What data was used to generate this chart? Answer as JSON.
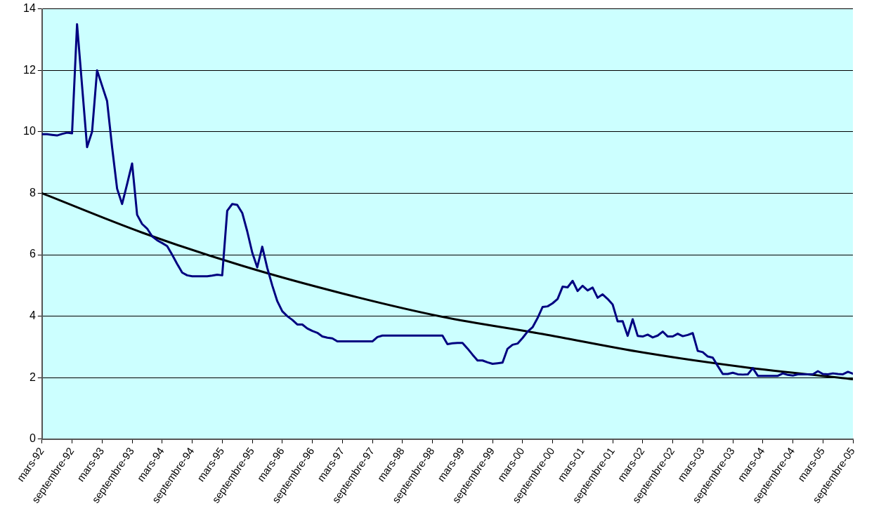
{
  "chart_data": {
    "type": "line",
    "x": [
      "1992-03",
      "1992-04",
      "1992-05",
      "1992-06",
      "1992-07",
      "1992-08",
      "1992-09",
      "1992-10",
      "1992-11",
      "1992-12",
      "1993-01",
      "1993-02",
      "1993-03",
      "1993-04",
      "1993-05",
      "1993-06",
      "1993-07",
      "1993-08",
      "1993-09",
      "1993-10",
      "1993-11",
      "1993-12",
      "1994-01",
      "1994-02",
      "1994-03",
      "1994-04",
      "1994-05",
      "1994-06",
      "1994-07",
      "1994-08",
      "1994-09",
      "1994-10",
      "1994-11",
      "1994-12",
      "1995-01",
      "1995-02",
      "1995-03",
      "1995-04",
      "1995-05",
      "1995-06",
      "1995-07",
      "1995-08",
      "1995-09",
      "1995-10",
      "1995-11",
      "1995-12",
      "1996-01",
      "1996-02",
      "1996-03",
      "1996-04",
      "1996-05",
      "1996-06",
      "1996-07",
      "1996-08",
      "1996-09",
      "1996-10",
      "1996-11",
      "1996-12",
      "1997-01",
      "1997-02",
      "1997-03",
      "1997-04",
      "1997-05",
      "1997-06",
      "1997-07",
      "1997-08",
      "1997-09",
      "1997-10",
      "1997-11",
      "1997-12",
      "1998-01",
      "1998-02",
      "1998-03",
      "1998-04",
      "1998-05",
      "1998-06",
      "1998-07",
      "1998-08",
      "1998-09",
      "1998-10",
      "1998-11",
      "1998-12",
      "1999-01",
      "1999-02",
      "1999-03",
      "1999-04",
      "1999-05",
      "1999-06",
      "1999-07",
      "1999-08",
      "1999-09",
      "1999-10",
      "1999-11",
      "1999-12",
      "2000-01",
      "2000-02",
      "2000-03",
      "2000-04",
      "2000-05",
      "2000-06",
      "2000-07",
      "2000-08",
      "2000-09",
      "2000-10",
      "2000-11",
      "2000-12",
      "2001-01",
      "2001-02",
      "2001-03",
      "2001-04",
      "2001-05",
      "2001-06",
      "2001-07",
      "2001-08",
      "2001-09",
      "2001-10",
      "2001-11",
      "2001-12",
      "2002-01",
      "2002-02",
      "2002-03",
      "2002-04",
      "2002-05",
      "2002-06",
      "2002-07",
      "2002-08",
      "2002-09",
      "2002-10",
      "2002-11",
      "2002-12",
      "2003-01",
      "2003-02",
      "2003-03",
      "2003-04",
      "2003-05",
      "2003-06",
      "2003-07",
      "2003-08",
      "2003-09",
      "2003-10",
      "2003-11",
      "2003-12",
      "2004-01",
      "2004-02",
      "2004-03",
      "2004-04",
      "2004-05",
      "2004-06",
      "2004-07",
      "2004-08",
      "2004-09",
      "2004-10",
      "2004-11",
      "2004-12",
      "2005-01",
      "2005-02",
      "2005-03",
      "2005-04",
      "2005-05",
      "2005-06",
      "2005-07",
      "2005-08",
      "2005-09"
    ],
    "series": [
      {
        "color": "#000080",
        "values": [
          9.92,
          9.92,
          9.9,
          9.88,
          9.93,
          9.97,
          9.95,
          13.5,
          11.5,
          9.5,
          10,
          12,
          11.5,
          11,
          9.5,
          8.15,
          7.65,
          8.3,
          8.97,
          7.3,
          7,
          6.85,
          6.6,
          6.47,
          6.38,
          6.28,
          6,
          5.7,
          5.42,
          5.33,
          5.3,
          5.3,
          5.3,
          5.3,
          5.32,
          5.35,
          5.33,
          7.43,
          7.65,
          7.62,
          7.36,
          6.76,
          6.07,
          5.59,
          6.26,
          5.57,
          5,
          4.49,
          4.16,
          4,
          3.88,
          3.73,
          3.73,
          3.6,
          3.52,
          3.46,
          3.34,
          3.3,
          3.28,
          3.18,
          3.18,
          3.18,
          3.18,
          3.18,
          3.18,
          3.18,
          3.18,
          3.32,
          3.37,
          3.37,
          3.37,
          3.37,
          3.37,
          3.37,
          3.37,
          3.37,
          3.37,
          3.37,
          3.37,
          3.37,
          3.37,
          3.09,
          3.12,
          3.13,
          3.13,
          2.95,
          2.75,
          2.56,
          2.56,
          2.5,
          2.45,
          2.47,
          2.49,
          2.94,
          3.07,
          3.11,
          3.29,
          3.5,
          3.64,
          3.94,
          4.3,
          4.32,
          4.42,
          4.56,
          4.96,
          4.94,
          5.15,
          4.82,
          4.99,
          4.84,
          4.93,
          4.6,
          4.71,
          4.56,
          4.38,
          3.83,
          3.84,
          3.36,
          3.9,
          3.36,
          3.34,
          3.4,
          3.31,
          3.37,
          3.5,
          3.34,
          3.34,
          3.43,
          3.35,
          3.39,
          3.45,
          2.87,
          2.83,
          2.69,
          2.65,
          2.38,
          2.12,
          2.12,
          2.16,
          2.11,
          2.1,
          2.11,
          2.31,
          2.06,
          2.06,
          2.06,
          2.06,
          2.06,
          2.14,
          2.09,
          2.07,
          2.11,
          2.11,
          2.11,
          2.11,
          2.21,
          2.12,
          2.11,
          2.14,
          2.12,
          2.11,
          2.19,
          2.13
        ]
      },
      {
        "type": "line",
        "color": "#000000",
        "x": [
          "1992-03",
          "1993-11",
          "1995-07",
          "1997-03",
          "1998-11",
          "2000-07",
          "2002-03",
          "2003-11",
          "2005-09"
        ],
        "values": [
          8.0,
          6.72,
          5.64,
          4.74,
          3.98,
          3.42,
          2.82,
          2.35,
          1.95
        ]
      }
    ],
    "xlim": [
      "1992-03",
      "2005-09"
    ],
    "xticks": [
      {
        "value": "1992-03",
        "label": "mars-92"
      },
      {
        "value": "1992-09",
        "label": "septembre-92"
      },
      {
        "value": "1993-03",
        "label": "mars-93"
      },
      {
        "value": "1993-09",
        "label": "septembre-93"
      },
      {
        "value": "1994-03",
        "label": "mars-94"
      },
      {
        "value": "1994-09",
        "label": "septembre-94"
      },
      {
        "value": "1995-03",
        "label": "mars-95"
      },
      {
        "value": "1995-09",
        "label": "septembre-95"
      },
      {
        "value": "1996-03",
        "label": "mars-96"
      },
      {
        "value": "1996-09",
        "label": "septembre-96"
      },
      {
        "value": "1997-03",
        "label": "mars-97"
      },
      {
        "value": "1997-09",
        "label": "septembre-97"
      },
      {
        "value": "1998-03",
        "label": "mars-98"
      },
      {
        "value": "1998-09",
        "label": "septembre-98"
      },
      {
        "value": "1999-03",
        "label": "mars-99"
      },
      {
        "value": "1999-09",
        "label": "septembre-99"
      },
      {
        "value": "2000-03",
        "label": "mars-00"
      },
      {
        "value": "2000-09",
        "label": "septembre-00"
      },
      {
        "value": "2001-03",
        "label": "mars-01"
      },
      {
        "value": "2001-09",
        "label": "septembre-01"
      },
      {
        "value": "2002-03",
        "label": "mars-02"
      },
      {
        "value": "2002-09",
        "label": "septembre-02"
      },
      {
        "value": "2003-03",
        "label": "mars-03"
      },
      {
        "value": "2003-09",
        "label": "septembre-03"
      },
      {
        "value": "2004-03",
        "label": "mars-04"
      },
      {
        "value": "2004-09",
        "label": "septembre-04"
      },
      {
        "value": "2005-03",
        "label": "mars-05"
      },
      {
        "value": "2005-09",
        "label": "septembre-05"
      }
    ],
    "ylim": [
      0,
      14
    ],
    "yticks": [
      0,
      2,
      4,
      6,
      8,
      10,
      12,
      14
    ],
    "grid": "y",
    "legend": false,
    "marker": "none",
    "line_style": "solid"
  }
}
